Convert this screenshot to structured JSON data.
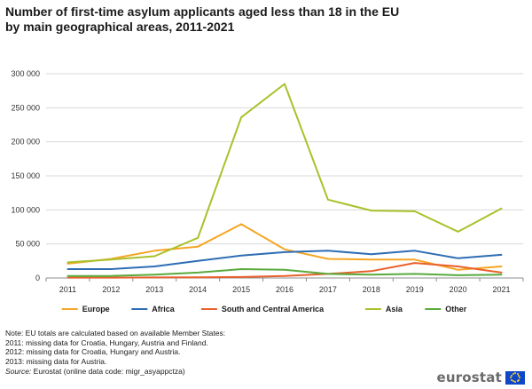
{
  "header": {
    "title_line1": "Number of first-time asylum applicants aged less than 18 in the EU",
    "title_line2": "by main geographical areas, 2011-2021"
  },
  "chart_data": {
    "type": "line",
    "x": [
      "2011",
      "2012",
      "2013",
      "2014",
      "2015",
      "2016",
      "2017",
      "2018",
      "2019",
      "2020",
      "2021"
    ],
    "y_ticks": [
      "0",
      "50 000",
      "100 000",
      "150 000",
      "200 000",
      "250 000",
      "300 000"
    ],
    "ylim": [
      0,
      300000
    ],
    "grid": true,
    "legend_position": "bottom",
    "series": [
      {
        "name": "Europe",
        "color": "#f5a623",
        "values": [
          21000,
          28000,
          40000,
          46000,
          79000,
          42000,
          28000,
          27000,
          27000,
          12000,
          17000
        ]
      },
      {
        "name": "Africa",
        "color": "#2e6db4",
        "values": [
          13000,
          13000,
          17000,
          25000,
          33000,
          38000,
          40000,
          35000,
          40000,
          29000,
          34000
        ]
      },
      {
        "name": "South and Central America",
        "color": "#e8612c",
        "values": [
          500,
          500,
          800,
          1000,
          1500,
          3000,
          6000,
          10000,
          22000,
          17000,
          8000
        ]
      },
      {
        "name": "Asia",
        "color": "#a9c12a",
        "values": [
          23000,
          27000,
          32000,
          59000,
          236000,
          285000,
          115000,
          99000,
          98000,
          68000,
          102000
        ]
      },
      {
        "name": "Other",
        "color": "#5aaa3c",
        "values": [
          3000,
          3000,
          5000,
          8000,
          13000,
          12000,
          6000,
          5000,
          6000,
          4000,
          5000
        ]
      }
    ]
  },
  "notes": {
    "line1": "Note: EU totals are calculated based on available Member States:",
    "line2": "2011: missing data for Croatia, Hungary, Austria and Finland.",
    "line3": "2012: missing data for Croatia, Hungary and Austria.",
    "line4": "2013: missing data for Austria."
  },
  "source": {
    "label": "Source:",
    "text": "Eurostat (online data code: migr_asyappctza)"
  },
  "logo": {
    "text": "eurostat",
    "flag_color": "#0e47cb",
    "star_color": "#ffd617"
  }
}
